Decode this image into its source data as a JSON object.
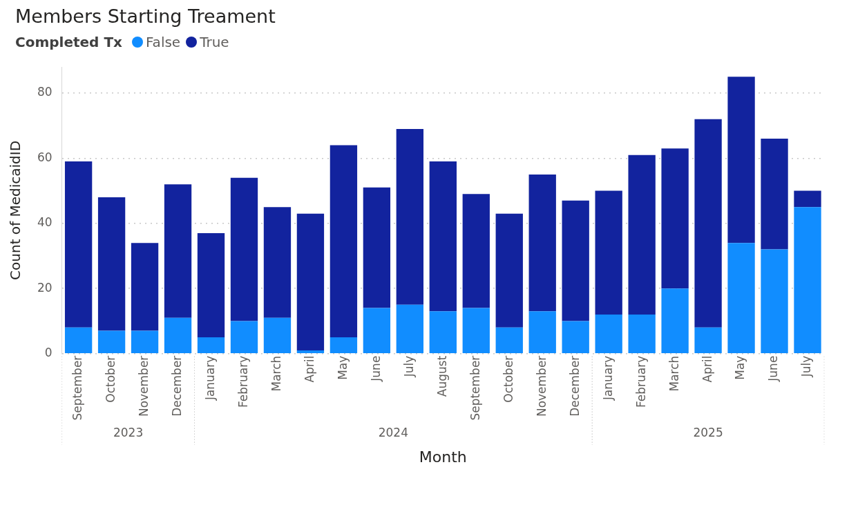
{
  "chart_data": {
    "type": "bar",
    "title": "Members Starting Treament",
    "xlabel": "Month",
    "ylabel": "Count of MedicaidID",
    "legend_title": "Completed Tx",
    "categories": [
      "September",
      "October",
      "November",
      "December",
      "January",
      "February",
      "March",
      "April",
      "May",
      "June",
      "July",
      "August",
      "September",
      "October",
      "November",
      "December",
      "January",
      "February",
      "March",
      "April",
      "May",
      "June",
      "July"
    ],
    "annotations": [
      "2023",
      "2024",
      "2025"
    ],
    "series": [
      {
        "name": "False",
        "color": "#118dff",
        "values": [
          8,
          7,
          7,
          11,
          5,
          10,
          11,
          1,
          5,
          14,
          15,
          13,
          14,
          8,
          13,
          10,
          12,
          12,
          20,
          8,
          34,
          32,
          45
        ]
      },
      {
        "name": "True",
        "color": "#12239e",
        "values": [
          51,
          41,
          27,
          41,
          32,
          44,
          34,
          42,
          59,
          37,
          54,
          46,
          35,
          35,
          42,
          37,
          38,
          49,
          43,
          64,
          51,
          34,
          5
        ]
      }
    ],
    "stacked": true,
    "ylim": [
      0,
      88
    ],
    "yticks": [
      0,
      20,
      40,
      60,
      80
    ],
    "grid": "y",
    "legend": "top left"
  }
}
